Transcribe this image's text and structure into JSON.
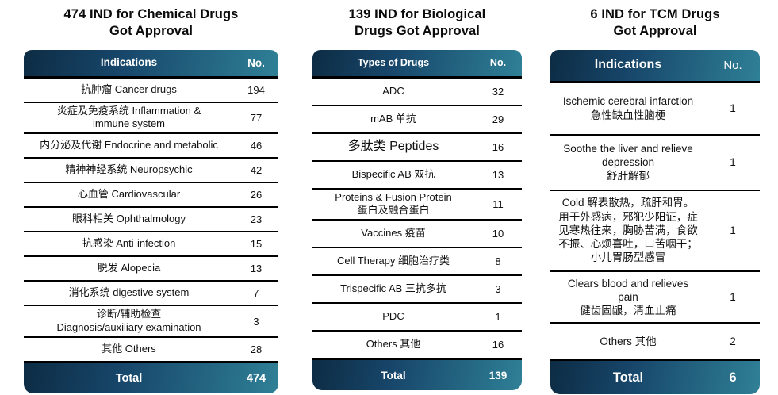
{
  "colors": {
    "band_gradient_start": "#0d2c44",
    "band_gradient_end": "#2f8096",
    "band_text": "#ffffff",
    "divider": "#000000",
    "body_text": "#111111",
    "background": "#ffffff"
  },
  "tables": [
    {
      "title": "474 IND for Chemical Drugs\nGot Approval",
      "columns": {
        "label": "Indications",
        "value": "No."
      },
      "rows": [
        {
          "label": "抗肿瘤 Cancer drugs",
          "value": "194"
        },
        {
          "label": "炎症及免疫系统 Inflammation &\nimmune system",
          "value": "77"
        },
        {
          "label": "内分泌及代谢 Endocrine and metabolic",
          "value": "46"
        },
        {
          "label": "精神神经系统 Neuropsychic",
          "value": "42"
        },
        {
          "label": "心血管 Cardiovascular",
          "value": "26"
        },
        {
          "label": "眼科相关 Ophthalmology",
          "value": "23"
        },
        {
          "label": "抗感染 Anti-infection",
          "value": "15"
        },
        {
          "label": "脱发 Alopecia",
          "value": "13"
        },
        {
          "label": "消化系统 digestive system",
          "value": "7"
        },
        {
          "label": "诊断/辅助检查\nDiagnosis/auxiliary examination",
          "value": "3"
        },
        {
          "label": "其他 Others",
          "value": "28"
        }
      ],
      "total": {
        "label": "Total",
        "value": "474"
      }
    },
    {
      "title": "139 IND for Biological\nDrugs Got Approval",
      "columns": {
        "label": "Types of Drugs",
        "value": "No."
      },
      "rows": [
        {
          "label": "ADC",
          "value": "32"
        },
        {
          "label": "mAB 单抗",
          "value": "29"
        },
        {
          "label": "多肽类 Peptides",
          "value": "16",
          "size": "lg"
        },
        {
          "label": "Bispecific AB 双抗",
          "value": "13"
        },
        {
          "label": "Proteins & Fusion Protein\n蛋白及融合蛋白",
          "value": "11"
        },
        {
          "label": "Vaccines 疫苗",
          "value": "10"
        },
        {
          "label": "Cell Therapy 细胞治疗类",
          "value": "8"
        },
        {
          "label": "Trispecific AB 三抗多抗",
          "value": "3"
        },
        {
          "label": "PDC",
          "value": "1"
        },
        {
          "label": "Others 其他",
          "value": "16"
        }
      ],
      "total": {
        "label": "Total",
        "value": "139"
      }
    },
    {
      "title": "6 IND for TCM Drugs\nGot Approval",
      "columns": {
        "label": "Indications",
        "value": "No."
      },
      "rows": [
        {
          "label": "Ischemic cerebral infarction\n急性缺血性脑梗",
          "value": "1"
        },
        {
          "label": "Soothe the liver and relieve\ndepression\n舒肝解郁",
          "value": "1"
        },
        {
          "label": "Cold 解表散热，疏肝和胃。 用于外感病，邪犯少阳证，症见寒热往来，胸胁苦满，食欲不振、心烦喜吐，口苦咽干；小儿胃肠型感冒",
          "value": "1"
        },
        {
          "label": "Clears blood and relieves\npain\n健齿固龈，清血止痛",
          "value": "1"
        },
        {
          "label": "Others 其他",
          "value": "2"
        }
      ],
      "total": {
        "label": "Total",
        "value": "6"
      }
    }
  ]
}
